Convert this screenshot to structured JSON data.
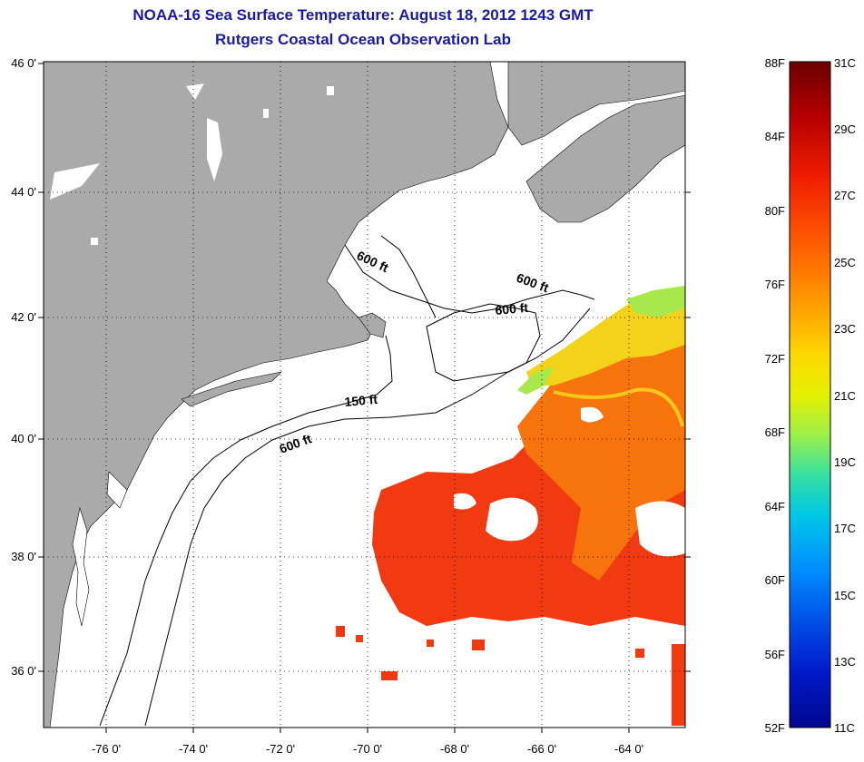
{
  "header": {
    "title": "NOAA-16 Sea Surface Temperature:  August 18, 2012 1243 GMT",
    "subtitle": "Rutgers Coastal Ocean Observation Lab"
  },
  "map": {
    "lat_ticks": [
      "46 0'",
      "44 0'",
      "42 0'",
      "40 0'",
      "38 0'",
      "36 0'"
    ],
    "lon_ticks": [
      "-76 0'",
      "-74 0'",
      "-72 0'",
      "-70 0'",
      "-68 0'",
      "-66 0'",
      "-64 0'"
    ],
    "contour_labels": [
      "600 ft",
      "600 ft",
      "600 ft",
      "150 ft",
      "600 ft"
    ],
    "land_color": "#aaaaaa",
    "grid": "dotted"
  },
  "colorbar": {
    "fahrenheit_labels": [
      "88F",
      "84F",
      "80F",
      "76F",
      "72F",
      "68F",
      "64F",
      "60F",
      "56F",
      "52F"
    ],
    "celsius_labels": [
      "31C",
      "29C",
      "27C",
      "25C",
      "23C",
      "21C",
      "19C",
      "17C",
      "15C",
      "13C",
      "11C"
    ],
    "colors": [
      "#6b0000",
      "#b30000",
      "#ee1c00",
      "#ff5a00",
      "#ff9a00",
      "#ffd800",
      "#e4f000",
      "#9ef04a",
      "#38e0a0",
      "#00c8e6",
      "#0090ff",
      "#0050e8",
      "#0018c8",
      "#000890"
    ]
  }
}
